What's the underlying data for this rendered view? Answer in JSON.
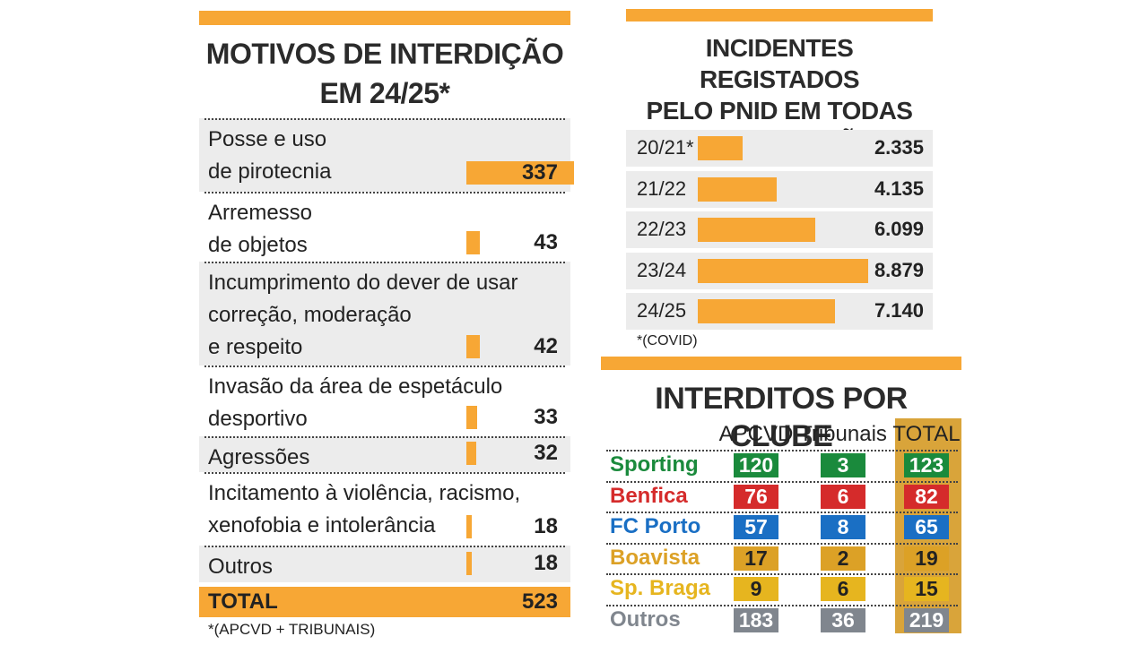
{
  "chart_data": [
    {
      "type": "bar",
      "title": "MOTIVOS DE INTERDIÇÃO\nEM 24/25*",
      "categories": [
        "Posse e uso\nde pirotecnia",
        "Arremesso\nde objetos",
        "Incumprimento do dever de usar\ncorreção, moderação\ne respeito",
        "Invasão da área de espetáculo\ndesportivo",
        "Agressões",
        "Incitamento à violência, racismo,\nxenofobia e intolerância",
        "Outros"
      ],
      "values": [
        337,
        43,
        42,
        33,
        32,
        18,
        18
      ],
      "color": "#f7a735",
      "total_label": "TOTAL",
      "total": 523,
      "footnote": "*(APCVD + TRIBUNAIS)"
    },
    {
      "type": "bar",
      "title": "INCIDENTES REGISTADOS\nPELO PNID EM TODAS\nAS COMPETIÇÕES",
      "categories": [
        "20/21*",
        "21/22",
        "22/23",
        "23/24",
        "24/25"
      ],
      "values": [
        2335,
        4135,
        6099,
        8879,
        7140
      ],
      "value_labels": [
        "2.335",
        "4.135",
        "6.099",
        "8.879",
        "7.140"
      ],
      "color": "#f7a735",
      "footnote": "*(COVID)"
    }
  ],
  "table": {
    "title": "INTERDITOS POR CLUBE",
    "columns": [
      "APCVD",
      "Tribunais",
      "TOTAL"
    ],
    "rows": [
      {
        "name": "Sporting",
        "color": "#1a8a3c",
        "values": [
          120,
          3,
          123
        ]
      },
      {
        "name": "Benfica",
        "color": "#d52b2b",
        "values": [
          76,
          6,
          82
        ]
      },
      {
        "name": "FC Porto",
        "color": "#1a6fc4",
        "values": [
          57,
          8,
          65
        ]
      },
      {
        "name": "Boavista",
        "color": "#dca126",
        "values": [
          17,
          2,
          19
        ]
      },
      {
        "name": "Sp. Braga",
        "color": "#e6b51f",
        "values": [
          9,
          6,
          15
        ]
      },
      {
        "name": "Outros",
        "color": "#80868e",
        "values": [
          183,
          36,
          219
        ]
      }
    ]
  }
}
